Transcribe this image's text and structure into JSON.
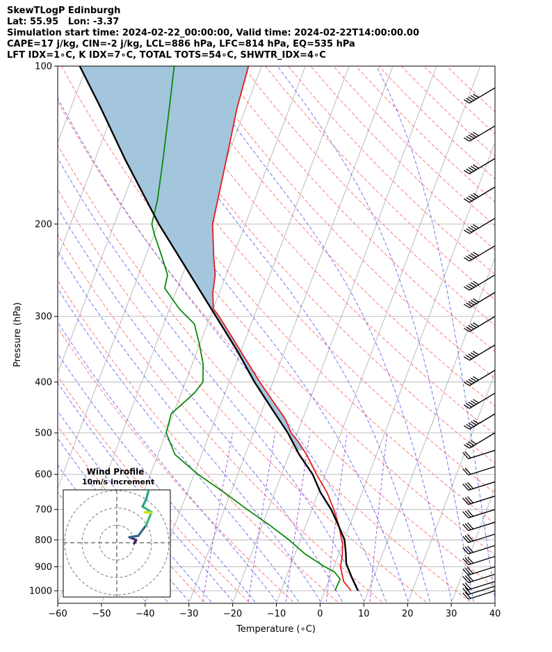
{
  "header": {
    "line1": "SkewTLogP Edinburgh",
    "line2": "Lat: 55.95   Lon: -3.37",
    "line3": "Simulation start time: 2024-02-22_00:00:00, Valid time: 2024-02-22T14:00:00.00",
    "line4": "CAPE=17 j/kg, CIN=-2 j/kg, LCL=886 hPa, LFC=814 hPa, EQ=535 hPa",
    "line5": "LFT IDX=1∘C, K IDX=7∘C, TOTAL TOTS=54∘C, SHWTR_IDX=4∘C"
  },
  "chart_data": {
    "type": "line",
    "chart": "skew-T log-P diagram",
    "xlabel": "Temperature (∘C)",
    "ylabel": "Pressure (hPa)",
    "xlim": [
      -60,
      40
    ],
    "ylim": [
      1050,
      100
    ],
    "yscale": "log",
    "x_ticks": [
      -60,
      -50,
      -40,
      -30,
      -20,
      -10,
      0,
      10,
      20,
      30,
      40
    ],
    "x_tick_labels": [
      "−60",
      "−50",
      "−40",
      "−30",
      "−20",
      "−10",
      "0",
      "10",
      "20",
      "30",
      "40"
    ],
    "y_ticks": [
      1000,
      900,
      800,
      700,
      600,
      500,
      400,
      300,
      200,
      100
    ],
    "y_tick_labels": [
      "1000",
      "900",
      "800",
      "700",
      "600",
      "500",
      "400",
      "300",
      "200",
      "100"
    ],
    "grid": true,
    "series": [
      {
        "role": "temperature",
        "color": "#e41a1c",
        "points": [
          [
            1000,
            6
          ],
          [
            960,
            3.5
          ],
          [
            900,
            1.5
          ],
          [
            860,
            1
          ],
          [
            814,
            0
          ],
          [
            750,
            -2.5
          ],
          [
            700,
            -5
          ],
          [
            650,
            -8
          ],
          [
            600,
            -12
          ],
          [
            550,
            -16
          ],
          [
            520,
            -19
          ],
          [
            500,
            -21.4
          ],
          [
            470,
            -24
          ],
          [
            430,
            -29
          ],
          [
            400,
            -33
          ],
          [
            360,
            -38.5
          ],
          [
            330,
            -43
          ],
          [
            300,
            -48
          ],
          [
            290,
            -50
          ],
          [
            270,
            -51.5
          ],
          [
            250,
            -52.5
          ],
          [
            230,
            -54.5
          ],
          [
            200,
            -57.5
          ],
          [
            150,
            -60
          ],
          [
            120,
            -62
          ],
          [
            100,
            -63
          ]
        ]
      },
      {
        "role": "dewpoint",
        "color": "#0a8a0a",
        "points": [
          [
            1000,
            2.3
          ],
          [
            950,
            2.5
          ],
          [
            920,
            0.5
          ],
          [
            900,
            -2.1
          ],
          [
            850,
            -7.8
          ],
          [
            800,
            -12.6
          ],
          [
            750,
            -18.3
          ],
          [
            700,
            -24.8
          ],
          [
            650,
            -31.5
          ],
          [
            600,
            -39.1
          ],
          [
            550,
            -46.1
          ],
          [
            500,
            -50
          ],
          [
            460,
            -50.5
          ],
          [
            420,
            -47
          ],
          [
            400,
            -46
          ],
          [
            370,
            -47.5
          ],
          [
            340,
            -50
          ],
          [
            310,
            -53
          ],
          [
            290,
            -57.8
          ],
          [
            265,
            -62.9
          ],
          [
            250,
            -63.4
          ],
          [
            230,
            -66.4
          ],
          [
            210,
            -69.8
          ],
          [
            200,
            -71.4
          ],
          [
            180,
            -72.2
          ],
          [
            150,
            -74.5
          ],
          [
            120,
            -77.5
          ],
          [
            100,
            -80
          ]
        ]
      },
      {
        "role": "parcel",
        "color": "#000000",
        "points": [
          [
            1000,
            7.6
          ],
          [
            950,
            5.3
          ],
          [
            900,
            3.1
          ],
          [
            886,
            2.5
          ],
          [
            850,
            1.6
          ],
          [
            800,
            0.1
          ],
          [
            750,
            -2.6
          ],
          [
            700,
            -5.6
          ],
          [
            650,
            -9.5
          ],
          [
            600,
            -12.9
          ],
          [
            550,
            -17.7
          ],
          [
            500,
            -22.2
          ],
          [
            450,
            -27.9
          ],
          [
            400,
            -34.2
          ],
          [
            350,
            -40.7
          ],
          [
            300,
            -48.7
          ],
          [
            250,
            -58.2
          ],
          [
            200,
            -69.8
          ],
          [
            150,
            -83.3
          ],
          [
            120,
            -93.2
          ],
          [
            100,
            -101.6
          ]
        ]
      }
    ],
    "cape_fill_color": "#a3c6dd",
    "background_lines": {
      "isotherms_color": "#aaaaaa",
      "dry_adiabats_color": "#ff6a6a",
      "moist_adiabats_color": "#4444ee",
      "mixing_ratio_color": "#8a2be2"
    },
    "wind_barbs": {
      "levels": [
        1000,
        980,
        960,
        930,
        900,
        860,
        820,
        780,
        740,
        700,
        660,
        620,
        580,
        540,
        500,
        460,
        420,
        380,
        340,
        300,
        270,
        250,
        220,
        195,
        170,
        150,
        130,
        110
      ],
      "speed_kt": [
        15,
        18,
        20,
        25,
        25,
        25,
        25,
        25,
        25,
        25,
        25,
        25,
        20,
        20,
        40,
        50,
        50,
        65,
        55,
        55,
        55,
        50,
        55,
        55,
        55,
        55,
        55,
        55
      ]
    },
    "inset": {
      "title": "Wind Profile",
      "subtitle": "10m/s increment"
    }
  }
}
